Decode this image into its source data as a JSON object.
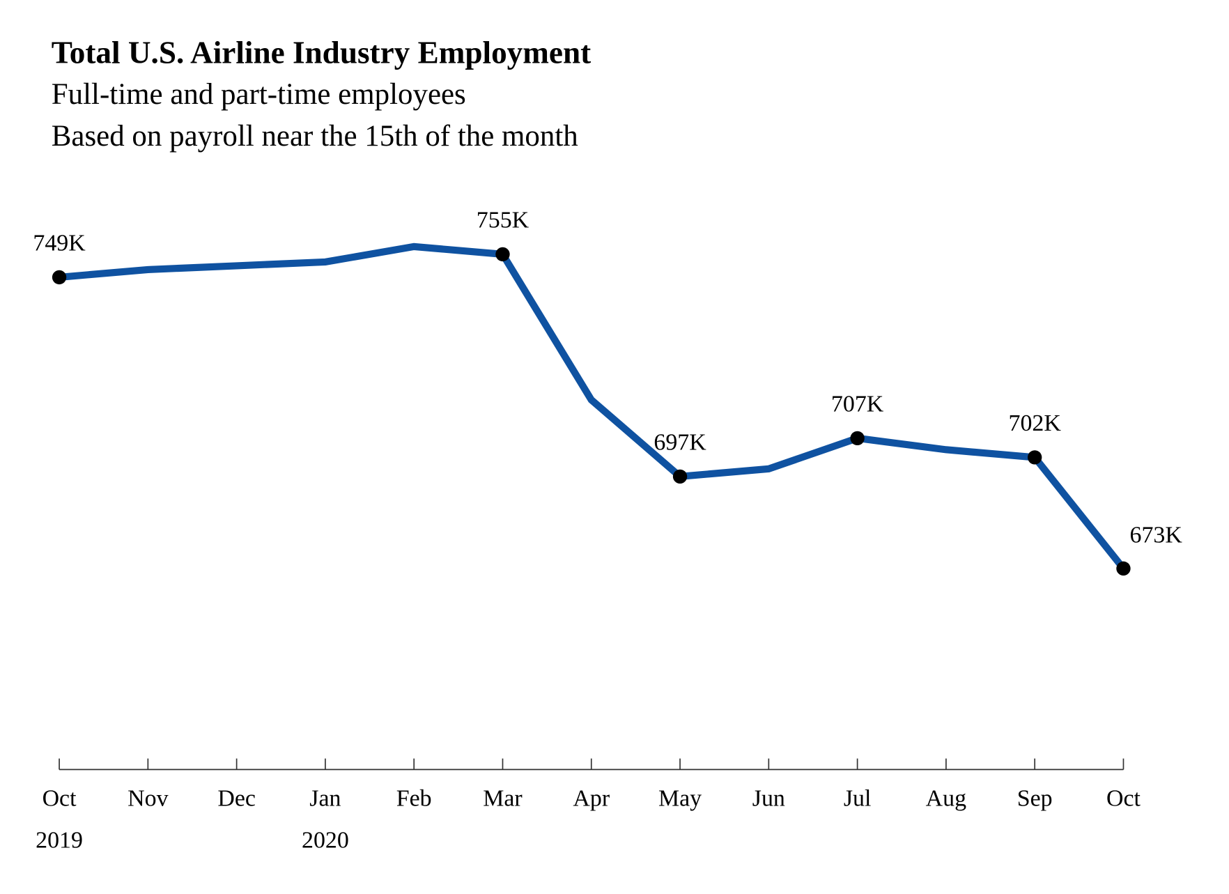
{
  "chart_data": {
    "type": "line",
    "title": "Total U.S. Airline Industry Employment",
    "subtitle": [
      "Full-time and part-time employees",
      "Based on payroll near the 15th of the month"
    ],
    "xlabel": "",
    "ylabel": "",
    "categories": [
      "Oct",
      "Nov",
      "Dec",
      "Jan",
      "Feb",
      "Mar",
      "Apr",
      "May",
      "Jun",
      "Jul",
      "Aug",
      "Sep",
      "Oct"
    ],
    "year_labels": [
      {
        "index": 0,
        "label": "2019"
      },
      {
        "index": 3,
        "label": "2020"
      }
    ],
    "values": [
      749,
      751,
      752,
      753,
      757,
      755,
      717,
      697,
      699,
      707,
      704,
      702,
      673
    ],
    "unit": "K",
    "data_labels": [
      {
        "index": 0,
        "label": "749K"
      },
      {
        "index": 5,
        "label": "755K"
      },
      {
        "index": 7,
        "label": "697K"
      },
      {
        "index": 9,
        "label": "707K"
      },
      {
        "index": 11,
        "label": "702K"
      },
      {
        "index": 12,
        "label": "673K"
      }
    ],
    "ylim": [
      620,
      780
    ],
    "grid": false,
    "line_color": "#0f52a1",
    "marker_color": "#000000"
  }
}
